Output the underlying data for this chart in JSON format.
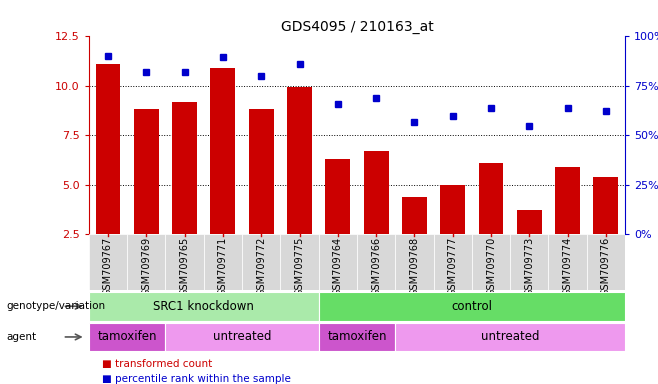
{
  "title": "GDS4095 / 210163_at",
  "samples": [
    "GSM709767",
    "GSM709769",
    "GSM709765",
    "GSM709771",
    "GSM709772",
    "GSM709775",
    "GSM709764",
    "GSM709766",
    "GSM709768",
    "GSM709777",
    "GSM709770",
    "GSM709773",
    "GSM709774",
    "GSM709776"
  ],
  "bar_values": [
    11.1,
    8.85,
    9.2,
    10.9,
    8.85,
    9.95,
    6.3,
    6.7,
    4.4,
    5.0,
    6.1,
    3.75,
    5.9,
    5.4
  ],
  "dot_values_left_scale": [
    11.5,
    10.7,
    10.7,
    11.45,
    10.5,
    11.1,
    9.1,
    9.4,
    8.2,
    8.5,
    8.9,
    7.95,
    8.9,
    8.75
  ],
  "ylim_left": [
    2.5,
    12.5
  ],
  "ylim_right": [
    0,
    100
  ],
  "yticks_left": [
    2.5,
    5.0,
    7.5,
    10.0,
    12.5
  ],
  "yticks_right": [
    0,
    25,
    50,
    75,
    100
  ],
  "ytick_labels_right": [
    "0%",
    "25%",
    "50%",
    "75%",
    "100%"
  ],
  "bar_color": "#cc0000",
  "dot_color": "#0000cc",
  "bar_width": 0.65,
  "genotype_groups": [
    {
      "label": "SRC1 knockdown",
      "start": 0,
      "end": 6,
      "color": "#aaeaaa"
    },
    {
      "label": "control",
      "start": 6,
      "end": 14,
      "color": "#66dd66"
    }
  ],
  "agent_groups": [
    {
      "label": "tamoxifen",
      "start": 0,
      "end": 2,
      "color": "#cc55cc"
    },
    {
      "label": "untreated",
      "start": 2,
      "end": 6,
      "color": "#ee99ee"
    },
    {
      "label": "tamoxifen",
      "start": 6,
      "end": 8,
      "color": "#cc55cc"
    },
    {
      "label": "untreated",
      "start": 8,
      "end": 14,
      "color": "#ee99ee"
    }
  ],
  "legend_items": [
    {
      "label": "transformed count",
      "color": "#cc0000"
    },
    {
      "label": "percentile rank within the sample",
      "color": "#0000cc"
    }
  ],
  "left_tick_color": "#cc0000",
  "right_tick_color": "#0000cc",
  "genotype_label": "genotype/variation",
  "agent_label": "agent",
  "sample_bg_color": "#d8d8d8",
  "chart_bg_color": "#ffffff"
}
